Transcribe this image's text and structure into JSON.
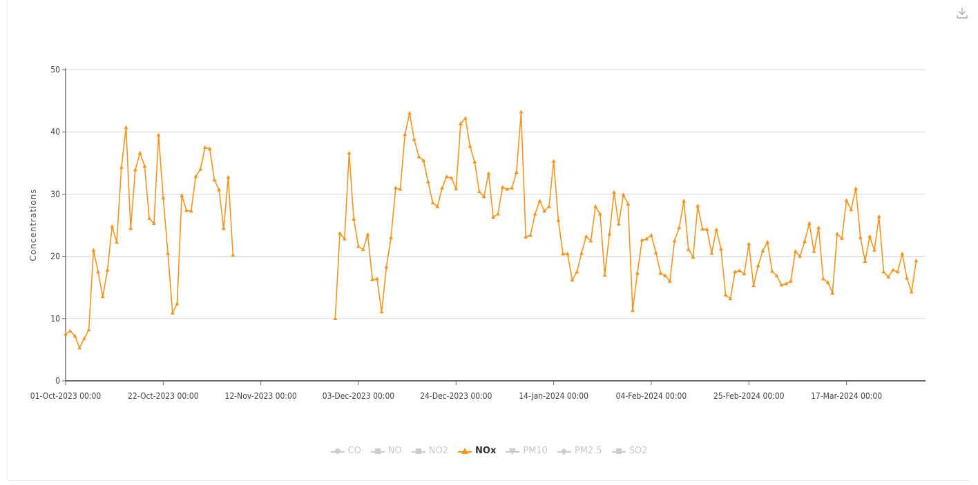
{
  "download_icon": "download-icon",
  "colors": {
    "series": "#f7941d",
    "grid": "#d9d9d9",
    "axis": "#333333",
    "legend_inactive": "#c8c8c8"
  },
  "chart_data": {
    "type": "line",
    "title": "",
    "ylabel": "Concentrations",
    "xlabel": "",
    "ylim": [
      0,
      50
    ],
    "yticks": [
      0,
      10,
      20,
      30,
      40,
      50
    ],
    "grid": true,
    "legend_placement": "bottom",
    "xlim": [
      "2023-10-01",
      "2024-03-31"
    ],
    "xtick_labels": [
      "01-Oct-2023 00:00",
      "22-Oct-2023 00:00",
      "12-Nov-2023 00:00",
      "03-Dec-2023 00:00",
      "24-Dec-2023 00:00",
      "14-Jan-2024 00:00",
      "04-Feb-2024 00:00",
      "25-Feb-2024 00:00",
      "17-Mar-2024 00:00"
    ],
    "xtick_dates": [
      "2023-10-01",
      "2023-10-22",
      "2023-11-12",
      "2023-12-03",
      "2023-12-24",
      "2024-01-14",
      "2024-02-04",
      "2024-02-25",
      "2024-03-17"
    ],
    "legend": [
      {
        "name": "CO",
        "marker": "circle",
        "active": false
      },
      {
        "name": "NO",
        "marker": "square",
        "active": false
      },
      {
        "name": "NO2",
        "marker": "square",
        "active": false
      },
      {
        "name": "NOx",
        "marker": "triangle",
        "active": true
      },
      {
        "name": "PM10",
        "marker": "triangle-down",
        "active": false
      },
      {
        "name": "PM2.5",
        "marker": "diamond",
        "active": false
      },
      {
        "name": "SO2",
        "marker": "square",
        "active": false
      }
    ],
    "series": [
      {
        "name": "NOx",
        "points": [
          [
            "2023-10-01",
            7.5
          ],
          [
            "2023-10-02",
            8.0
          ],
          [
            "2023-10-03",
            7.2
          ],
          [
            "2023-10-04",
            5.3
          ],
          [
            "2023-10-05",
            6.8
          ],
          [
            "2023-10-06",
            8.2
          ],
          [
            "2023-10-07",
            21.0
          ],
          [
            "2023-10-08",
            17.5
          ],
          [
            "2023-10-09",
            13.5
          ],
          [
            "2023-10-10",
            17.8
          ],
          [
            "2023-10-11",
            24.8
          ],
          [
            "2023-10-12",
            22.3
          ],
          [
            "2023-10-13",
            34.3
          ],
          [
            "2023-10-14",
            40.7
          ],
          [
            "2023-10-15",
            24.5
          ],
          [
            "2023-10-16",
            33.9
          ],
          [
            "2023-10-17",
            36.6
          ],
          [
            "2023-10-18",
            34.5
          ],
          [
            "2023-10-19",
            26.1
          ],
          [
            "2023-10-20",
            25.3
          ],
          [
            "2023-10-21",
            39.5
          ],
          [
            "2023-10-22",
            29.4
          ],
          [
            "2023-10-23",
            20.5
          ],
          [
            "2023-10-24",
            10.9
          ],
          [
            "2023-10-25",
            12.4
          ],
          [
            "2023-10-26",
            29.8
          ],
          [
            "2023-10-27",
            27.4
          ],
          [
            "2023-10-28",
            27.3
          ],
          [
            "2023-10-29",
            32.8
          ],
          [
            "2023-10-30",
            34.0
          ],
          [
            "2023-10-31",
            37.5
          ],
          [
            "2023-11-01",
            37.3
          ],
          [
            "2023-11-02",
            32.3
          ],
          [
            "2023-11-03",
            30.7
          ],
          [
            "2023-11-04",
            24.5
          ],
          [
            "2023-11-05",
            32.7
          ],
          [
            "2023-11-06",
            20.2
          ],
          null,
          [
            "2023-11-28",
            10.0
          ],
          [
            "2023-11-29",
            23.7
          ],
          [
            "2023-11-30",
            22.8
          ],
          [
            "2023-12-01",
            36.6
          ],
          [
            "2023-12-02",
            26.0
          ],
          [
            "2023-12-03",
            21.6
          ],
          [
            "2023-12-04",
            21.1
          ],
          [
            "2023-12-05",
            23.5
          ],
          [
            "2023-12-06",
            16.3
          ],
          [
            "2023-12-07",
            16.4
          ],
          [
            "2023-12-08",
            11.1
          ],
          [
            "2023-12-09",
            18.3
          ],
          [
            "2023-12-10",
            23.0
          ],
          [
            "2023-12-11",
            31.0
          ],
          [
            "2023-12-12",
            30.8
          ],
          [
            "2023-12-13",
            39.6
          ],
          [
            "2023-12-14",
            43.0
          ],
          [
            "2023-12-15",
            38.8
          ],
          [
            "2023-12-16",
            36.0
          ],
          [
            "2023-12-17",
            35.4
          ],
          [
            "2023-12-18",
            32.0
          ],
          [
            "2023-12-19",
            28.6
          ],
          [
            "2023-12-20",
            28.0
          ],
          [
            "2023-12-21",
            31.0
          ],
          [
            "2023-12-22",
            32.8
          ],
          [
            "2023-12-23",
            32.6
          ],
          [
            "2023-12-24",
            30.9
          ],
          [
            "2023-12-25",
            41.3
          ],
          [
            "2023-12-26",
            42.2
          ],
          [
            "2023-12-27",
            37.7
          ],
          [
            "2023-12-28",
            35.2
          ],
          [
            "2023-12-29",
            30.4
          ],
          [
            "2023-12-30",
            29.6
          ],
          [
            "2023-12-31",
            33.3
          ],
          [
            "2024-01-01",
            26.3
          ],
          [
            "2024-01-02",
            26.8
          ],
          [
            "2024-01-03",
            31.1
          ],
          [
            "2024-01-04",
            30.8
          ],
          [
            "2024-01-05",
            31.0
          ],
          [
            "2024-01-06",
            33.5
          ],
          [
            "2024-01-07",
            43.2
          ],
          [
            "2024-01-08",
            23.1
          ],
          [
            "2024-01-09",
            23.4
          ],
          [
            "2024-01-10",
            26.8
          ],
          [
            "2024-01-11",
            28.9
          ],
          [
            "2024-01-12",
            27.3
          ],
          [
            "2024-01-13",
            28.0
          ],
          [
            "2024-01-14",
            35.3
          ],
          [
            "2024-01-15",
            25.8
          ],
          [
            "2024-01-16",
            20.4
          ],
          [
            "2024-01-17",
            20.4
          ],
          [
            "2024-01-18",
            16.2
          ],
          [
            "2024-01-19",
            17.5
          ],
          [
            "2024-01-20",
            20.5
          ],
          [
            "2024-01-21",
            23.2
          ],
          [
            "2024-01-22",
            22.5
          ],
          [
            "2024-01-23",
            28.0
          ],
          [
            "2024-01-24",
            26.8
          ],
          [
            "2024-01-25",
            17.0
          ],
          [
            "2024-01-26",
            23.6
          ],
          [
            "2024-01-27",
            30.3
          ],
          [
            "2024-01-28",
            25.2
          ],
          [
            "2024-01-29",
            29.9
          ],
          [
            "2024-01-30",
            28.4
          ],
          [
            "2024-01-31",
            11.3
          ],
          [
            "2024-02-01",
            17.3
          ],
          [
            "2024-02-02",
            22.6
          ],
          [
            "2024-02-03",
            22.8
          ],
          [
            "2024-02-04",
            23.4
          ],
          [
            "2024-02-05",
            20.6
          ],
          [
            "2024-02-06",
            17.3
          ],
          [
            "2024-02-07",
            16.9
          ],
          [
            "2024-02-08",
            16.0
          ],
          [
            "2024-02-09",
            22.5
          ],
          [
            "2024-02-10",
            24.6
          ],
          [
            "2024-02-11",
            28.9
          ],
          [
            "2024-02-12",
            21.1
          ],
          [
            "2024-02-13",
            19.9
          ],
          [
            "2024-02-14",
            28.1
          ],
          [
            "2024-02-15",
            24.4
          ],
          [
            "2024-02-16",
            24.3
          ],
          [
            "2024-02-17",
            20.5
          ],
          [
            "2024-02-18",
            24.3
          ],
          [
            "2024-02-19",
            21.2
          ],
          [
            "2024-02-20",
            13.8
          ],
          [
            "2024-02-21",
            13.2
          ],
          [
            "2024-02-22",
            17.5
          ],
          [
            "2024-02-23",
            17.7
          ],
          [
            "2024-02-24",
            17.2
          ],
          [
            "2024-02-25",
            22.0
          ],
          [
            "2024-02-26",
            15.3
          ],
          [
            "2024-02-27",
            18.5
          ],
          [
            "2024-02-28",
            20.9
          ],
          [
            "2024-02-29",
            22.3
          ],
          [
            "2024-03-01",
            17.6
          ],
          [
            "2024-03-02",
            16.9
          ],
          [
            "2024-03-03",
            15.4
          ],
          [
            "2024-03-04",
            15.6
          ],
          [
            "2024-03-05",
            16.0
          ],
          [
            "2024-03-06",
            20.8
          ],
          [
            "2024-03-07",
            20.0
          ],
          [
            "2024-03-08",
            22.4
          ],
          [
            "2024-03-09",
            25.3
          ],
          [
            "2024-03-10",
            20.8
          ],
          [
            "2024-03-11",
            24.6
          ],
          [
            "2024-03-12",
            16.4
          ],
          [
            "2024-03-13",
            15.8
          ],
          [
            "2024-03-14",
            14.1
          ],
          [
            "2024-03-15",
            23.6
          ],
          [
            "2024-03-16",
            22.9
          ],
          [
            "2024-03-17",
            29.0
          ],
          [
            "2024-03-18",
            27.5
          ],
          [
            "2024-03-19",
            30.9
          ],
          [
            "2024-03-20",
            23.0
          ],
          [
            "2024-03-21",
            19.2
          ],
          [
            "2024-03-22",
            23.2
          ],
          [
            "2024-03-23",
            21.0
          ],
          [
            "2024-03-24",
            26.4
          ],
          [
            "2024-03-25",
            17.5
          ],
          [
            "2024-03-26",
            16.7
          ],
          [
            "2024-03-27",
            17.8
          ],
          [
            "2024-03-28",
            17.5
          ],
          [
            "2024-03-29",
            20.4
          ],
          [
            "2024-03-30",
            16.5
          ],
          [
            "2024-03-31",
            14.3
          ],
          [
            "2024-04-01",
            19.3
          ]
        ]
      }
    ]
  }
}
